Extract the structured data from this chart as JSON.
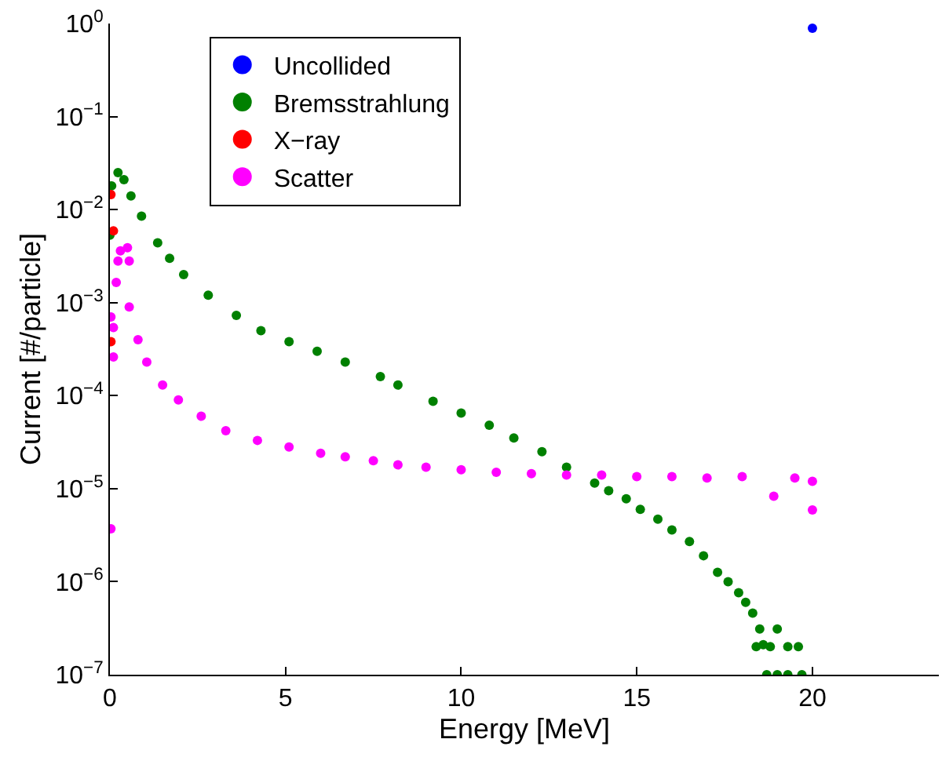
{
  "chart_data": {
    "type": "scatter",
    "xlabel": "Energy [MeV]",
    "ylabel": "Current [#/particle]",
    "log": "y",
    "legend": "top left",
    "marker": "circle",
    "xlim": [
      0,
      23.6
    ],
    "xticks": [
      0,
      5,
      10,
      15,
      20
    ],
    "ylim": [
      1e-07,
      1
    ],
    "yticks": [
      {
        "value": 1e-07,
        "label": "10$^{−7}$"
      },
      {
        "value": 1e-06,
        "label": "10$^{−6}$"
      },
      {
        "value": 1e-05,
        "label": "10$^{−5}$"
      },
      {
        "value": 0.0001,
        "label": "10$^{−4}$"
      },
      {
        "value": 0.001,
        "label": "10$^{−3}$"
      },
      {
        "value": 0.01,
        "label": "10$^{−2}$"
      },
      {
        "value": 0.1,
        "label": "10$^{−1}$"
      },
      {
        "value": 1,
        "label": "10$^{0}$"
      }
    ],
    "series": [
      {
        "name": "Uncollided",
        "color": "#0000ff",
        "x": [
          20
        ],
        "values": [
          0.89
        ]
      },
      {
        "name": "Bremsstrahlung",
        "color": "#008000",
        "x": [
          0.0,
          0.05,
          0.23,
          0.4,
          0.6,
          0.9,
          1.36,
          1.7,
          2.1,
          2.8,
          3.6,
          4.3,
          5.1,
          5.9,
          6.7,
          7.7,
          8.2,
          9.2,
          10.0,
          10.8,
          11.5,
          12.3,
          13.0,
          13.8,
          14.2,
          14.7,
          15.1,
          15.6,
          16.0,
          16.5,
          16.9,
          17.3,
          17.6,
          17.9,
          18.1,
          18.3,
          18.5,
          18.6,
          18.4,
          18.8,
          19.0,
          19.3,
          19.6,
          18.7,
          19.0,
          19.3,
          19.7
        ],
        "values": [
          0.0053,
          0.018,
          0.025,
          0.021,
          0.014,
          0.0085,
          0.0044,
          0.003,
          0.002,
          0.0012,
          0.00073,
          0.0005,
          0.00038,
          0.0003,
          0.00023,
          0.00016,
          0.00013,
          8.7e-05,
          6.5e-05,
          4.8e-05,
          3.5e-05,
          2.5e-05,
          1.7e-05,
          1.15e-05,
          9.5e-06,
          7.8e-06,
          6e-06,
          4.7e-06,
          3.6e-06,
          2.7e-06,
          1.9e-06,
          1.26e-06,
          1e-06,
          7.6e-07,
          6e-07,
          4.6e-07,
          3.1e-07,
          2.1e-07,
          2e-07,
          2e-07,
          3.1e-07,
          2e-07,
          2e-07,
          1e-07,
          1e-07,
          1e-07,
          1e-07
        ]
      },
      {
        "name": "X−ray",
        "color": "#ff0000",
        "x": [
          0.03,
          0.1,
          0.03
        ],
        "values": [
          0.0145,
          0.0059,
          0.00038
        ]
      },
      {
        "name": "Scatter",
        "color": "#ff00ff",
        "x": [
          0.03,
          0.1,
          0.1,
          0.03,
          0.18,
          0.23,
          0.3,
          0.5,
          0.55,
          0.55,
          0.8,
          1.05,
          1.5,
          1.95,
          2.6,
          3.3,
          4.2,
          5.1,
          6.0,
          6.7,
          7.5,
          8.2,
          9.0,
          10.0,
          11.0,
          12.0,
          13.0,
          14.0,
          15.0,
          16.0,
          17.0,
          18.0,
          18.9,
          19.5,
          20.0,
          20.0
        ],
        "values": [
          3.7e-06,
          0.00026,
          0.00054,
          0.0007,
          0.00165,
          0.0028,
          0.0036,
          0.0039,
          0.0028,
          0.0009,
          0.0004,
          0.00023,
          0.00013,
          9e-05,
          6e-05,
          4.2e-05,
          3.3e-05,
          2.8e-05,
          2.4e-05,
          2.2e-05,
          2e-05,
          1.8e-05,
          1.7e-05,
          1.6e-05,
          1.5e-05,
          1.45e-05,
          1.4e-05,
          1.4e-05,
          1.35e-05,
          1.35e-05,
          1.3e-05,
          1.35e-05,
          8.3e-06,
          1.3e-05,
          1.2e-05,
          5.9e-06
        ]
      }
    ]
  }
}
